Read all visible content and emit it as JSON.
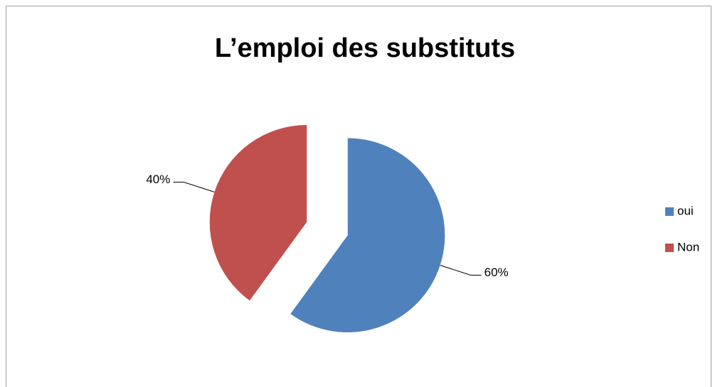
{
  "chart_data": {
    "type": "pie",
    "title": "L’emploi des substituts",
    "categories": [
      "oui",
      "Non"
    ],
    "values": [
      60,
      40
    ],
    "value_labels": [
      "60%",
      "40%"
    ],
    "colors": [
      "#4f81bd",
      "#c0504d"
    ],
    "legend": "right"
  }
}
